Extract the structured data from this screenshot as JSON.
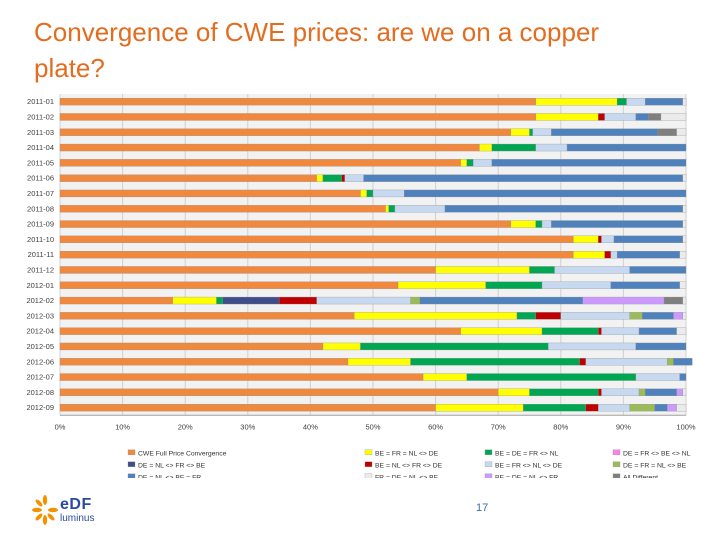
{
  "slide": {
    "title": "Convergence of CWE prices: are we on a copper plate?",
    "page_number": "17",
    "logo": {
      "word": "eDF",
      "sub": "luminus",
      "icon": "edf-spark-icon",
      "brand_color": "#2b4a9b",
      "accent": "#f39200"
    }
  },
  "chart_data": {
    "type": "bar",
    "orientation": "horizontal",
    "stacked": "100%",
    "title": "",
    "xlabel": "",
    "ylabel": "",
    "xlim": [
      0,
      100
    ],
    "x_ticks": [
      "0%",
      "10%",
      "20%",
      "30%",
      "40%",
      "50%",
      "60%",
      "70%",
      "80%",
      "90%",
      "100%"
    ],
    "grid": true,
    "legend_position": "bottom",
    "categories": [
      "2011-01",
      "2011-02",
      "2011-03",
      "2011-04",
      "2011-05",
      "2011-06",
      "2011-07",
      "2011-08",
      "2011-09",
      "2011-10",
      "2011-11",
      "2011-12",
      "2012-01",
      "2012-02",
      "2012-03",
      "2012-04",
      "2012-05",
      "2012-06",
      "2012-07",
      "2012-08",
      "2012-09"
    ],
    "series": [
      {
        "name": "CWE Full Price Convergence",
        "color": "#f0883e",
        "values": [
          76,
          76,
          72,
          67,
          64,
          41,
          48,
          52,
          72,
          82,
          82,
          60,
          54,
          18,
          47,
          64,
          42,
          46,
          58,
          70,
          60
        ]
      },
      {
        "name": "BE = FR = NL <> DE",
        "color": "#ffff00",
        "values": [
          13,
          10,
          3,
          2,
          1,
          1,
          1,
          0.5,
          4,
          4,
          5,
          15,
          14,
          7,
          26,
          13,
          6,
          10,
          7,
          5,
          14
        ]
      },
      {
        "name": "BE = DE = FR <> NL",
        "color": "#00a651",
        "values": [
          1.5,
          0,
          0.5,
          7,
          1,
          3,
          1,
          1,
          1,
          0,
          0,
          4,
          9,
          1,
          3,
          9,
          30,
          27,
          27,
          11,
          10
        ]
      },
      {
        "name": "DE = FR <> BE <> NL",
        "color": "#ff7fe6",
        "values": [
          0,
          0,
          0,
          0,
          0,
          0,
          0,
          0,
          0,
          0,
          0,
          0,
          0,
          0,
          0,
          0,
          0,
          0,
          0,
          0,
          0
        ]
      },
      {
        "name": "DE = NL <> FR <> BE",
        "color": "#3f4e8a",
        "values": [
          0,
          0,
          0,
          0,
          0,
          0,
          0,
          0,
          0,
          0,
          0,
          0,
          0,
          9,
          0,
          0,
          0,
          0,
          0,
          0,
          0
        ]
      },
      {
        "name": "BE = NL <> FR <> DE",
        "color": "#c00000",
        "values": [
          0,
          1,
          0,
          0,
          0,
          0.5,
          0,
          0,
          0,
          0.5,
          1,
          0,
          0,
          6,
          4,
          0.5,
          0,
          1,
          0,
          0.5,
          2
        ]
      },
      {
        "name": "BE = FR <> NL <> DE",
        "color": "#c6d9f1",
        "values": [
          3,
          5,
          3,
          5,
          3,
          3,
          5,
          8,
          1.5,
          2,
          1,
          12,
          11,
          15,
          11,
          6,
          14,
          13,
          7,
          6,
          5
        ]
      },
      {
        "name": "DE = FR = NL <> BE",
        "color": "#9bbb59",
        "values": [
          0,
          0,
          0,
          0,
          0,
          0,
          0,
          0,
          0,
          0,
          0,
          0,
          0,
          1.5,
          2,
          0,
          0,
          1,
          0,
          1,
          4
        ]
      },
      {
        "name": "DE = NL <> BE = FR",
        "color": "#4f81bd",
        "values": [
          6,
          2,
          17,
          19,
          31,
          51,
          45,
          38,
          21,
          11,
          10,
          9,
          11,
          26,
          5,
          6,
          8,
          3,
          1,
          5,
          2
        ]
      },
      {
        "name": "FR = DE = NL <> BE",
        "color": "#ebebeb",
        "values": [
          0,
          0,
          0,
          0,
          0,
          0,
          0,
          0,
          0,
          0,
          0,
          0,
          0,
          0,
          0,
          0,
          0,
          0,
          0,
          0,
          0
        ]
      },
      {
        "name": "BE = DE = NL <> FR",
        "color": "#cc99ff",
        "values": [
          0,
          0,
          0,
          0,
          0,
          0,
          0,
          0,
          0,
          0,
          0,
          0,
          0,
          13,
          1.5,
          0,
          0,
          0,
          0,
          1,
          1.5
        ]
      },
      {
        "name": "All Different",
        "color": "#7f7f7f",
        "values": [
          0,
          2,
          3,
          0,
          0,
          0,
          0,
          0,
          0,
          0,
          0,
          0,
          0,
          3,
          0,
          0,
          0,
          0,
          0,
          0,
          0
        ]
      }
    ]
  }
}
